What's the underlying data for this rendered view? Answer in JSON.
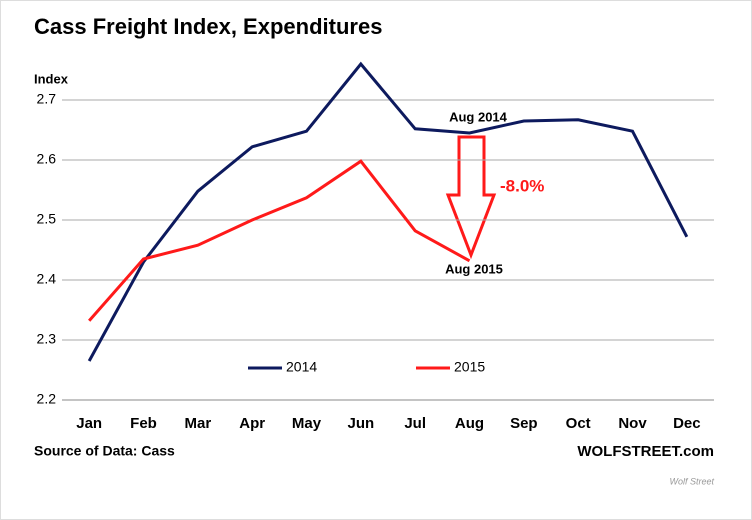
{
  "chart_data": {
    "type": "line",
    "title": "Cass Freight Index, Expenditures",
    "y_label": "Index",
    "categories": [
      "Jan",
      "Feb",
      "Mar",
      "Apr",
      "May",
      "Jun",
      "Jul",
      "Aug",
      "Sep",
      "Oct",
      "Nov",
      "Dec"
    ],
    "series": [
      {
        "name": "2014",
        "color": "#0d1a5e",
        "values": [
          2.265,
          2.43,
          2.548,
          2.622,
          2.648,
          2.76,
          2.652,
          2.645,
          2.665,
          2.667,
          2.648,
          2.472
        ]
      },
      {
        "name": "2015",
        "color": "#ff1a1a",
        "values": [
          2.332,
          2.435,
          2.458,
          2.5,
          2.537,
          2.598,
          2.482,
          2.432,
          null,
          null,
          null,
          null
        ]
      }
    ],
    "ylim": [
      2.2,
      2.8
    ],
    "yticks": [
      2.2,
      2.3,
      2.4,
      2.5,
      2.6,
      2.7
    ],
    "grid": true,
    "annotations": [
      "Aug 2014",
      "-8.0%",
      "Aug 2015"
    ],
    "source": "Source of Data: Cass",
    "credit": "WOLFSTREET.com",
    "watermark": "Wolf Street"
  }
}
